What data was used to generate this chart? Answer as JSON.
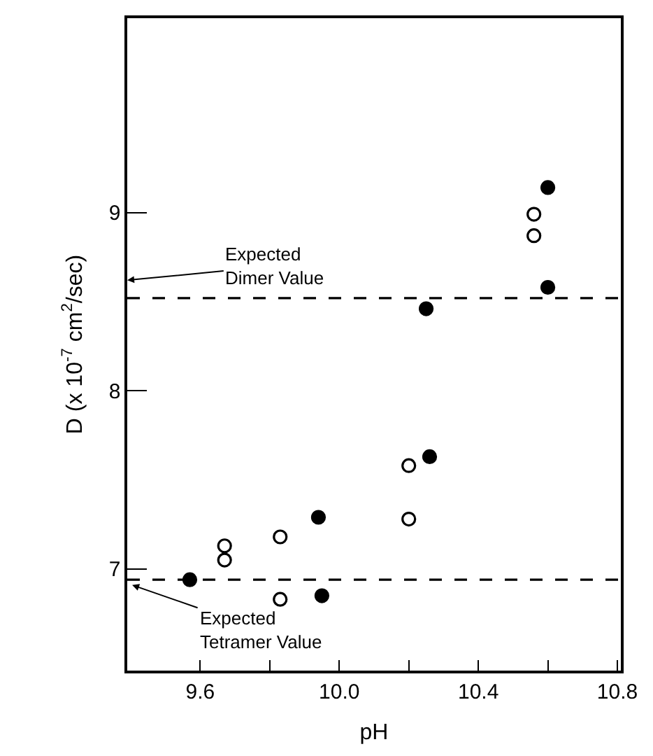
{
  "chart_data": {
    "type": "scatter",
    "xlabel": "pH",
    "ylabel": "D (x 10$^{-7}$ cm$^{2}$/sec)",
    "series": [
      {
        "color": "#000000",
        "marker": "circle",
        "x": [
          9.57,
          9.95,
          9.94,
          10.25,
          10.26,
          10.6,
          10.6
        ],
        "values": [
          6.94,
          6.85,
          7.29,
          8.46,
          7.63,
          8.58,
          9.14
        ]
      },
      {
        "color": "#000000",
        "marker": "circle-open",
        "x": [
          9.67,
          9.67,
          9.83,
          9.83,
          10.2,
          10.2,
          10.56,
          10.56
        ],
        "values": [
          7.13,
          7.05,
          7.18,
          6.83,
          7.58,
          7.28,
          8.99,
          8.87
        ]
      }
    ],
    "xlim": [
      9.39,
      10.81
    ],
    "ylim": [
      6.43,
      10.09
    ],
    "xticks": [
      9.6,
      {
        "value": 9.8,
        "label": null
      },
      {
        "value": 10.0,
        "label": "10.0"
      },
      {
        "value": 10.2,
        "label": null
      },
      10.4,
      {
        "value": 10.6,
        "label": null
      },
      10.8
    ],
    "yticks": [
      7,
      8,
      9
    ],
    "ref_lines": [
      {
        "axis": "y",
        "value": 8.52,
        "label": "Expected\nDimer Value",
        "color": "#000000",
        "line_style": "dashed"
      },
      {
        "axis": "y",
        "value": 6.94,
        "label": "Expected\nTetramer Value",
        "color": "#000000",
        "line_style": "dashed"
      }
    ]
  }
}
